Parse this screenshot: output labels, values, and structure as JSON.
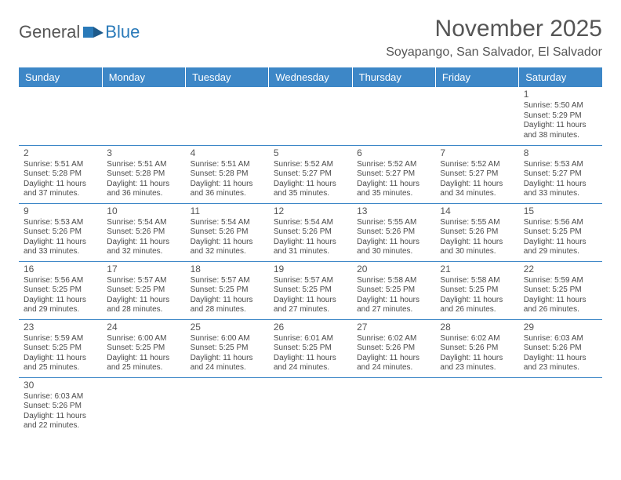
{
  "logo": {
    "part1": "General",
    "part2": "Blue"
  },
  "title": "November 2025",
  "location": "Soyapango, San Salvador, El Salvador",
  "colors": {
    "header_bg": "#3d87c7",
    "header_text": "#ffffff",
    "border": "#3d87c7",
    "text": "#4a4a4a",
    "logo_accent": "#2a7ab9"
  },
  "typography": {
    "title_fontsize": 30,
    "location_fontsize": 16,
    "dayheader_fontsize": 13,
    "daynum_fontsize": 12,
    "body_fontsize": 10
  },
  "day_headers": [
    "Sunday",
    "Monday",
    "Tuesday",
    "Wednesday",
    "Thursday",
    "Friday",
    "Saturday"
  ],
  "weeks": [
    [
      null,
      null,
      null,
      null,
      null,
      null,
      {
        "n": "1",
        "sunrise": "Sunrise: 5:50 AM",
        "sunset": "Sunset: 5:29 PM",
        "day1": "Daylight: 11 hours",
        "day2": "and 38 minutes."
      }
    ],
    [
      {
        "n": "2",
        "sunrise": "Sunrise: 5:51 AM",
        "sunset": "Sunset: 5:28 PM",
        "day1": "Daylight: 11 hours",
        "day2": "and 37 minutes."
      },
      {
        "n": "3",
        "sunrise": "Sunrise: 5:51 AM",
        "sunset": "Sunset: 5:28 PM",
        "day1": "Daylight: 11 hours",
        "day2": "and 36 minutes."
      },
      {
        "n": "4",
        "sunrise": "Sunrise: 5:51 AM",
        "sunset": "Sunset: 5:28 PM",
        "day1": "Daylight: 11 hours",
        "day2": "and 36 minutes."
      },
      {
        "n": "5",
        "sunrise": "Sunrise: 5:52 AM",
        "sunset": "Sunset: 5:27 PM",
        "day1": "Daylight: 11 hours",
        "day2": "and 35 minutes."
      },
      {
        "n": "6",
        "sunrise": "Sunrise: 5:52 AM",
        "sunset": "Sunset: 5:27 PM",
        "day1": "Daylight: 11 hours",
        "day2": "and 35 minutes."
      },
      {
        "n": "7",
        "sunrise": "Sunrise: 5:52 AM",
        "sunset": "Sunset: 5:27 PM",
        "day1": "Daylight: 11 hours",
        "day2": "and 34 minutes."
      },
      {
        "n": "8",
        "sunrise": "Sunrise: 5:53 AM",
        "sunset": "Sunset: 5:27 PM",
        "day1": "Daylight: 11 hours",
        "day2": "and 33 minutes."
      }
    ],
    [
      {
        "n": "9",
        "sunrise": "Sunrise: 5:53 AM",
        "sunset": "Sunset: 5:26 PM",
        "day1": "Daylight: 11 hours",
        "day2": "and 33 minutes."
      },
      {
        "n": "10",
        "sunrise": "Sunrise: 5:54 AM",
        "sunset": "Sunset: 5:26 PM",
        "day1": "Daylight: 11 hours",
        "day2": "and 32 minutes."
      },
      {
        "n": "11",
        "sunrise": "Sunrise: 5:54 AM",
        "sunset": "Sunset: 5:26 PM",
        "day1": "Daylight: 11 hours",
        "day2": "and 32 minutes."
      },
      {
        "n": "12",
        "sunrise": "Sunrise: 5:54 AM",
        "sunset": "Sunset: 5:26 PM",
        "day1": "Daylight: 11 hours",
        "day2": "and 31 minutes."
      },
      {
        "n": "13",
        "sunrise": "Sunrise: 5:55 AM",
        "sunset": "Sunset: 5:26 PM",
        "day1": "Daylight: 11 hours",
        "day2": "and 30 minutes."
      },
      {
        "n": "14",
        "sunrise": "Sunrise: 5:55 AM",
        "sunset": "Sunset: 5:26 PM",
        "day1": "Daylight: 11 hours",
        "day2": "and 30 minutes."
      },
      {
        "n": "15",
        "sunrise": "Sunrise: 5:56 AM",
        "sunset": "Sunset: 5:25 PM",
        "day1": "Daylight: 11 hours",
        "day2": "and 29 minutes."
      }
    ],
    [
      {
        "n": "16",
        "sunrise": "Sunrise: 5:56 AM",
        "sunset": "Sunset: 5:25 PM",
        "day1": "Daylight: 11 hours",
        "day2": "and 29 minutes."
      },
      {
        "n": "17",
        "sunrise": "Sunrise: 5:57 AM",
        "sunset": "Sunset: 5:25 PM",
        "day1": "Daylight: 11 hours",
        "day2": "and 28 minutes."
      },
      {
        "n": "18",
        "sunrise": "Sunrise: 5:57 AM",
        "sunset": "Sunset: 5:25 PM",
        "day1": "Daylight: 11 hours",
        "day2": "and 28 minutes."
      },
      {
        "n": "19",
        "sunrise": "Sunrise: 5:57 AM",
        "sunset": "Sunset: 5:25 PM",
        "day1": "Daylight: 11 hours",
        "day2": "and 27 minutes."
      },
      {
        "n": "20",
        "sunrise": "Sunrise: 5:58 AM",
        "sunset": "Sunset: 5:25 PM",
        "day1": "Daylight: 11 hours",
        "day2": "and 27 minutes."
      },
      {
        "n": "21",
        "sunrise": "Sunrise: 5:58 AM",
        "sunset": "Sunset: 5:25 PM",
        "day1": "Daylight: 11 hours",
        "day2": "and 26 minutes."
      },
      {
        "n": "22",
        "sunrise": "Sunrise: 5:59 AM",
        "sunset": "Sunset: 5:25 PM",
        "day1": "Daylight: 11 hours",
        "day2": "and 26 minutes."
      }
    ],
    [
      {
        "n": "23",
        "sunrise": "Sunrise: 5:59 AM",
        "sunset": "Sunset: 5:25 PM",
        "day1": "Daylight: 11 hours",
        "day2": "and 25 minutes."
      },
      {
        "n": "24",
        "sunrise": "Sunrise: 6:00 AM",
        "sunset": "Sunset: 5:25 PM",
        "day1": "Daylight: 11 hours",
        "day2": "and 25 minutes."
      },
      {
        "n": "25",
        "sunrise": "Sunrise: 6:00 AM",
        "sunset": "Sunset: 5:25 PM",
        "day1": "Daylight: 11 hours",
        "day2": "and 24 minutes."
      },
      {
        "n": "26",
        "sunrise": "Sunrise: 6:01 AM",
        "sunset": "Sunset: 5:25 PM",
        "day1": "Daylight: 11 hours",
        "day2": "and 24 minutes."
      },
      {
        "n": "27",
        "sunrise": "Sunrise: 6:02 AM",
        "sunset": "Sunset: 5:26 PM",
        "day1": "Daylight: 11 hours",
        "day2": "and 24 minutes."
      },
      {
        "n": "28",
        "sunrise": "Sunrise: 6:02 AM",
        "sunset": "Sunset: 5:26 PM",
        "day1": "Daylight: 11 hours",
        "day2": "and 23 minutes."
      },
      {
        "n": "29",
        "sunrise": "Sunrise: 6:03 AM",
        "sunset": "Sunset: 5:26 PM",
        "day1": "Daylight: 11 hours",
        "day2": "and 23 minutes."
      }
    ],
    [
      {
        "n": "30",
        "sunrise": "Sunrise: 6:03 AM",
        "sunset": "Sunset: 5:26 PM",
        "day1": "Daylight: 11 hours",
        "day2": "and 22 minutes."
      },
      null,
      null,
      null,
      null,
      null,
      null
    ]
  ]
}
